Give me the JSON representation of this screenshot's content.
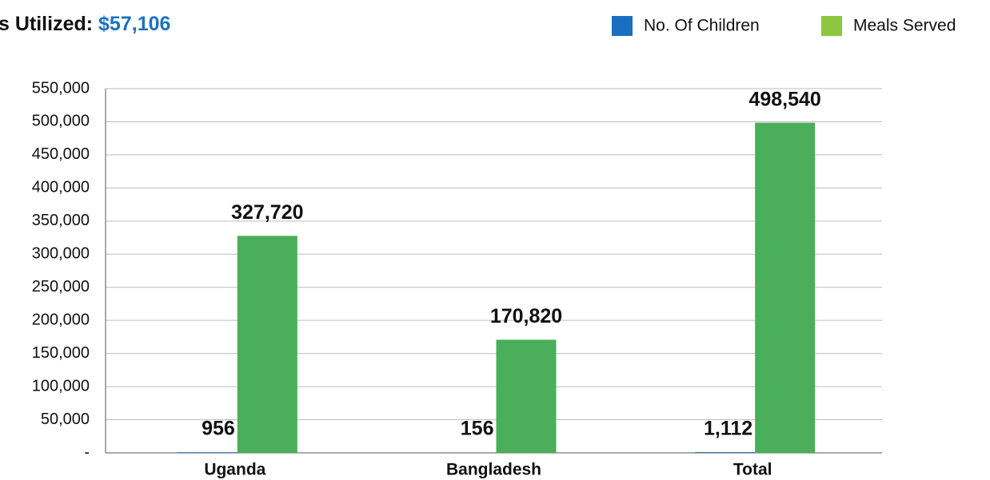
{
  "chart_data": {
    "type": "bar",
    "title": "s Utilized:",
    "title_value": "$57,106",
    "categories": [
      "Uganda",
      "Bangladesh",
      "Total"
    ],
    "series": [
      {
        "name": "No. Of Children",
        "color": "#1a6fc0",
        "label_color": "#4a6cc0",
        "values": [
          956,
          156,
          1112
        ],
        "value_labels": [
          "956",
          "156",
          "1,112"
        ]
      },
      {
        "name": "Meals Served",
        "color": "#4aae5a",
        "legend_color": "#8dc63f",
        "label_color": "#4aae5a",
        "values": [
          327720,
          170820,
          498540
        ],
        "value_labels": [
          "327,720",
          "170,820",
          "498,540"
        ]
      }
    ],
    "ylim": [
      0,
      550000
    ],
    "yticks": [
      {
        "value": 0,
        "label": "-"
      },
      {
        "value": 50000,
        "label": "50,000"
      },
      {
        "value": 100000,
        "label": "100,000"
      },
      {
        "value": 150000,
        "label": "150,000"
      },
      {
        "value": 200000,
        "label": "200,000"
      },
      {
        "value": 250000,
        "label": "250,000"
      },
      {
        "value": 300000,
        "label": "300,000"
      },
      {
        "value": 350000,
        "label": "350,000"
      },
      {
        "value": 400000,
        "label": "400,000"
      },
      {
        "value": 450000,
        "label": "450,000"
      },
      {
        "value": 500000,
        "label": "500,000"
      },
      {
        "value": 550000,
        "label": "550,000"
      }
    ],
    "grid": true,
    "legend": "top-right"
  }
}
